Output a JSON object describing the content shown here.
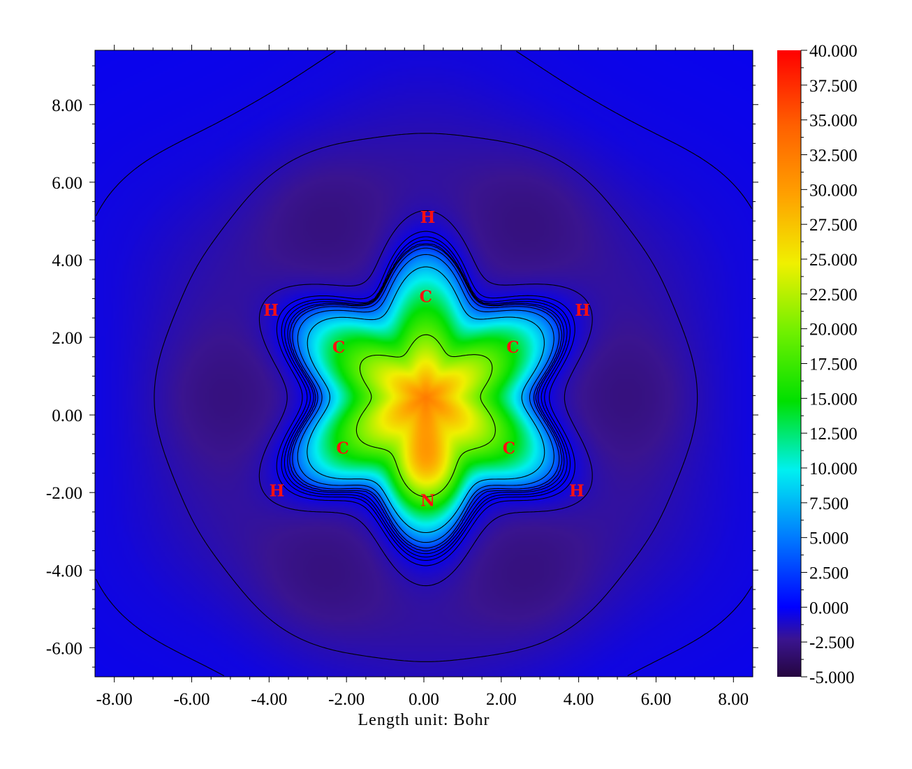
{
  "chart_data": {
    "type": "heatmap",
    "title": "",
    "xlabel": "Length unit: Bohr",
    "ylabel": "",
    "xlim": [
      -8.5,
      8.5
    ],
    "ylim": [
      -6.75,
      9.4
    ],
    "x_ticks": [
      -8,
      -6,
      -4,
      -2,
      0,
      2,
      4,
      6,
      8
    ],
    "x_tick_labels": [
      "-8.00",
      "-6.00",
      "-4.00",
      "-2.00",
      "0.00",
      "2.00",
      "4.00",
      "6.00",
      "8.00"
    ],
    "y_ticks": [
      -6,
      -4,
      -2,
      0,
      2,
      4,
      6,
      8
    ],
    "y_tick_labels": [
      "-6.00",
      "-4.00",
      "-2.00",
      "0.00",
      "2.00",
      "4.00",
      "6.00",
      "8.00"
    ],
    "colorbar": {
      "min": -5,
      "max": 40,
      "ticks": [
        40,
        37.5,
        35,
        32.5,
        30,
        27.5,
        25,
        22.5,
        20,
        17.5,
        15,
        12.5,
        10,
        7.5,
        5,
        2.5,
        0,
        -2.5,
        -5
      ],
      "tick_labels": [
        "40.000",
        "37.500",
        "35.000",
        "32.500",
        "30.000",
        "27.500",
        "25.000",
        "22.500",
        "20.000",
        "17.500",
        "15.000",
        "12.500",
        "10.000",
        "7.500",
        "5.000",
        "2.500",
        "0.000",
        "-2.500",
        "-5.000"
      ],
      "colormap": "rainbow (dark purple → blue → cyan → green → yellow → orange → red)"
    },
    "atoms": [
      {
        "label": "H",
        "x": 0.1,
        "y": 5.1
      },
      {
        "label": "C",
        "x": 0.05,
        "y": 3.05
      },
      {
        "label": "H",
        "x": -3.95,
        "y": 2.7
      },
      {
        "label": "H",
        "x": 4.1,
        "y": 2.7
      },
      {
        "label": "C",
        "x": -2.2,
        "y": 1.75
      },
      {
        "label": "C",
        "x": 2.3,
        "y": 1.75
      },
      {
        "label": "C",
        "x": -2.1,
        "y": -0.85
      },
      {
        "label": "C",
        "x": 2.2,
        "y": -0.85
      },
      {
        "label": "H",
        "x": -3.8,
        "y": -1.95
      },
      {
        "label": "H",
        "x": 3.95,
        "y": -1.95
      },
      {
        "label": "N",
        "x": 0.1,
        "y": -2.2
      }
    ]
  },
  "colors": {
    "minimum": "#2a0a55",
    "zero": "#1010ff",
    "max": "#ff0000",
    "atom_label": "#ff1010"
  }
}
